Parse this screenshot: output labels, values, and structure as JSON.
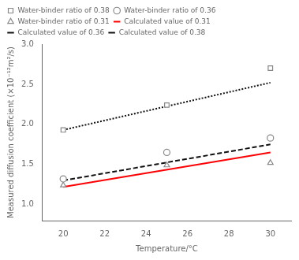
{
  "chart_data": {
    "type": "scatter",
    "xlabel": "Temperature/°C",
    "ylabel": "Measured diffusion coefficient (×10⁻¹²m²/s)",
    "xlim": [
      19,
      31
    ],
    "ylim": [
      0.8,
      3.0
    ],
    "xticks": [
      20,
      22,
      24,
      26,
      28,
      30
    ],
    "yticks": [
      {
        "value": 1.0,
        "label": "1.0"
      },
      1.5,
      {
        "value": 2.0,
        "label": "2.0"
      },
      2.5,
      {
        "value": 3.0,
        "label": "3.0"
      }
    ],
    "grid": false,
    "legend": "upper left",
    "series": [
      {
        "name": "Water-binder ratio of 0.38",
        "type": "scatter",
        "marker": "square",
        "color": "#888888",
        "x": [
          20,
          25,
          30
        ],
        "values": [
          1.93,
          2.24,
          2.7
        ]
      },
      {
        "name": "Water-binder ratio of 0.36",
        "type": "scatter",
        "marker": "circle",
        "color": "#888888",
        "x": [
          20,
          25,
          30
        ],
        "values": [
          1.32,
          1.65,
          1.83
        ]
      },
      {
        "name": "Water-binder ratio of 0.31",
        "type": "scatter",
        "marker": "triangle",
        "color": "#888888",
        "x": [
          20,
          25,
          30
        ],
        "values": [
          1.24,
          1.49,
          1.52
        ]
      },
      {
        "name": "Calculated value of 0.31",
        "type": "line",
        "line_style": "solid",
        "color": "#ff0000",
        "x": [
          20,
          30
        ],
        "values": [
          1.22,
          1.65
        ]
      },
      {
        "name": "Calculated value of 0.36",
        "type": "line",
        "line_style": "dashed",
        "color": "#111111",
        "x": [
          20,
          30
        ],
        "values": [
          1.3,
          1.75
        ]
      },
      {
        "name": "Calculated value of 0.38",
        "type": "line",
        "line_style": "dotted",
        "color": "#111111",
        "x": [
          20,
          30
        ],
        "values": [
          1.93,
          2.52
        ]
      }
    ]
  }
}
